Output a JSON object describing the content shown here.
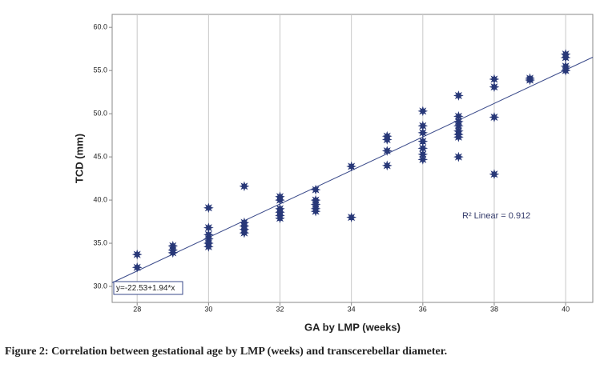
{
  "chart_data": {
    "type": "scatter",
    "x_label": "GA by LMP (weeks)",
    "y_label": "TCD (mm)",
    "x": [
      28,
      28,
      29,
      29,
      29,
      30,
      30,
      30,
      30,
      30,
      30,
      31,
      31,
      31,
      31,
      31,
      32,
      32,
      32,
      32,
      32,
      32,
      33,
      33,
      33,
      33,
      33,
      34,
      34,
      35,
      35,
      35,
      35,
      36,
      36,
      36,
      36,
      36,
      36,
      36,
      37,
      37,
      37,
      37,
      37,
      37,
      37,
      37,
      38,
      38,
      38,
      38,
      39,
      39,
      40,
      40,
      40,
      40
    ],
    "values": [
      33.7,
      32.2,
      34.7,
      34.2,
      33.9,
      39.1,
      36.8,
      36.0,
      35.5,
      35.0,
      34.6,
      41.6,
      37.4,
      37.0,
      36.6,
      36.2,
      40.4,
      40.0,
      39.0,
      38.6,
      38.2,
      37.9,
      41.2,
      40.0,
      39.5,
      39.0,
      38.7,
      43.9,
      38.0,
      47.4,
      47.0,
      45.7,
      44.0,
      50.3,
      48.6,
      47.8,
      46.8,
      46.0,
      45.3,
      44.7,
      52.1,
      49.7,
      49.1,
      48.6,
      48.0,
      47.6,
      47.3,
      45.0,
      54.0,
      53.1,
      49.6,
      43.0,
      54.1,
      53.9,
      56.9,
      56.5,
      55.5,
      55.0
    ],
    "color": "#283878",
    "xlim": [
      27.3,
      40.76
    ],
    "ylim": [
      28.15,
      61.5
    ],
    "xticks": [
      28,
      30,
      32,
      34,
      36,
      38,
      40
    ],
    "yticks": [
      {
        "value": 30,
        "label": "30.0"
      },
      {
        "value": 35,
        "label": "35.0"
      },
      {
        "value": 40,
        "label": "40.0"
      },
      {
        "value": 45,
        "label": "45.0"
      },
      {
        "value": 50,
        "label": "50.0"
      },
      {
        "value": 55,
        "label": "55.0"
      },
      {
        "value": 60,
        "label": "60.0"
      }
    ],
    "grid": "x",
    "fit": {
      "intercept": -22.53,
      "slope": 1.94,
      "color": "#3a4a8a",
      "label": "y=-22.53+1.94*x",
      "r2_label": "R² Linear = 0.912"
    }
  },
  "caption": "Figure 2: Correlation between gestational age by LMP (weeks) and transcerebellar diameter."
}
